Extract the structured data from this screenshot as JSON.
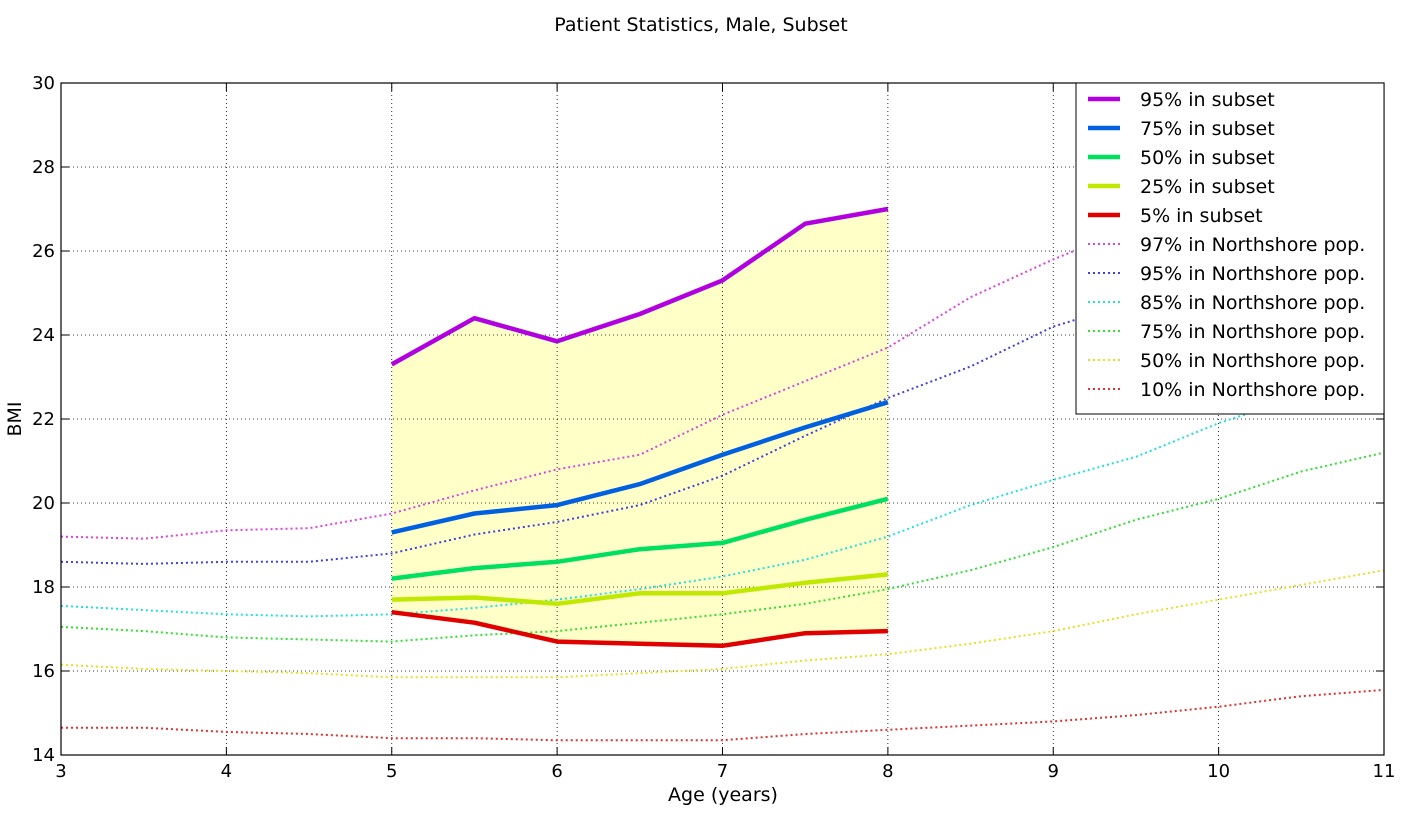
{
  "chart_data": {
    "type": "line",
    "title": "Patient Statistics, Male, Subset",
    "xlabel": "Age (years)",
    "ylabel": "BMI",
    "xlim": [
      3,
      11
    ],
    "ylim": [
      14,
      30
    ],
    "x_ticks": [
      3,
      4,
      5,
      6,
      7,
      8,
      9,
      10,
      11
    ],
    "y_ticks": [
      14,
      16,
      18,
      20,
      22,
      24,
      26,
      28,
      30
    ],
    "grid": true,
    "legend_position": "top-right",
    "fill_between": {
      "upper": "95% in subset",
      "lower": "5% in subset",
      "color": "#ffffc8"
    },
    "series": [
      {
        "name": "95% in subset",
        "style": "solid",
        "color": "#b000e0",
        "x": [
          5,
          5.5,
          6,
          6.5,
          7,
          7.5,
          8
        ],
        "y": [
          23.3,
          24.4,
          23.85,
          24.5,
          25.3,
          26.65,
          27.0
        ]
      },
      {
        "name": "75% in subset",
        "style": "solid",
        "color": "#0060e0",
        "x": [
          5,
          5.5,
          6,
          6.5,
          7,
          7.5,
          8
        ],
        "y": [
          19.3,
          19.75,
          19.95,
          20.45,
          21.15,
          21.8,
          22.4
        ]
      },
      {
        "name": "50% in subset",
        "style": "solid",
        "color": "#00e060",
        "x": [
          5,
          5.5,
          6,
          6.5,
          7,
          7.5,
          8
        ],
        "y": [
          18.2,
          18.45,
          18.6,
          18.9,
          19.05,
          19.6,
          20.1
        ]
      },
      {
        "name": "25% in subset",
        "style": "solid",
        "color": "#c0e800",
        "x": [
          5,
          5.5,
          6,
          6.5,
          7,
          7.5,
          8
        ],
        "y": [
          17.7,
          17.75,
          17.6,
          17.85,
          17.85,
          18.1,
          18.3
        ]
      },
      {
        "name": "5% in subset",
        "style": "solid",
        "color": "#e00000",
        "x": [
          5,
          5.5,
          6,
          6.5,
          7,
          7.5,
          8
        ],
        "y": [
          17.4,
          17.15,
          16.7,
          16.65,
          16.6,
          16.9,
          16.95
        ]
      },
      {
        "name": "97% in Northshore pop.",
        "style": "dotted",
        "color": "#e040e0",
        "x": [
          3,
          3.5,
          4,
          4.5,
          5,
          5.5,
          6,
          6.5,
          7,
          7.5,
          8,
          8.5,
          9,
          9.5
        ],
        "y": [
          19.2,
          19.15,
          19.35,
          19.4,
          19.75,
          20.3,
          20.8,
          21.15,
          22.1,
          22.9,
          23.7,
          24.9,
          25.8,
          26.6
        ]
      },
      {
        "name": "95% in Northshore pop.",
        "style": "dotted",
        "color": "#4040e0",
        "x": [
          3,
          3.5,
          4,
          4.5,
          5,
          5.5,
          6,
          6.5,
          7,
          7.5,
          8,
          8.5,
          9,
          9.5
        ],
        "y": [
          18.6,
          18.55,
          18.6,
          18.6,
          18.8,
          19.25,
          19.55,
          19.95,
          20.65,
          21.6,
          22.5,
          23.25,
          24.2,
          24.8
        ]
      },
      {
        "name": "85% in Northshore pop.",
        "style": "dotted",
        "color": "#20e0e0",
        "x": [
          3,
          3.5,
          4,
          4.5,
          5,
          5.5,
          6,
          6.5,
          7,
          7.5,
          8,
          8.5,
          9,
          9.5,
          10,
          10.5
        ],
        "y": [
          17.55,
          17.45,
          17.35,
          17.3,
          17.35,
          17.5,
          17.7,
          17.95,
          18.25,
          18.65,
          19.2,
          19.95,
          20.55,
          21.1,
          21.9,
          22.55
        ]
      },
      {
        "name": "75% in Northshore pop.",
        "style": "dotted",
        "color": "#30e030",
        "x": [
          3,
          3.5,
          4,
          4.5,
          5,
          5.5,
          6,
          6.5,
          7,
          7.5,
          8,
          8.5,
          9,
          9.5,
          10,
          10.5,
          11
        ],
        "y": [
          17.05,
          16.95,
          16.8,
          16.75,
          16.7,
          16.85,
          16.95,
          17.15,
          17.35,
          17.6,
          17.95,
          18.4,
          18.95,
          19.6,
          20.1,
          20.75,
          21.2
        ]
      },
      {
        "name": "50% in Northshore pop.",
        "style": "dotted",
        "color": "#e8e020",
        "x": [
          3,
          3.5,
          4,
          4.5,
          5,
          5.5,
          6,
          6.5,
          7,
          7.5,
          8,
          8.5,
          9,
          9.5,
          10,
          10.5,
          11
        ],
        "y": [
          16.15,
          16.05,
          16.0,
          15.95,
          15.85,
          15.85,
          15.85,
          15.95,
          16.05,
          16.25,
          16.4,
          16.65,
          16.95,
          17.35,
          17.7,
          18.05,
          18.4
        ]
      },
      {
        "name": "10% in Northshore pop.",
        "style": "dotted",
        "color": "#e03030",
        "x": [
          3,
          3.5,
          4,
          4.5,
          5,
          5.5,
          6,
          6.5,
          7,
          7.5,
          8,
          8.5,
          9,
          9.5,
          10,
          10.5,
          11
        ],
        "y": [
          14.65,
          14.65,
          14.55,
          14.5,
          14.4,
          14.4,
          14.35,
          14.35,
          14.35,
          14.5,
          14.6,
          14.7,
          14.8,
          14.95,
          15.15,
          15.4,
          15.55
        ]
      }
    ]
  }
}
